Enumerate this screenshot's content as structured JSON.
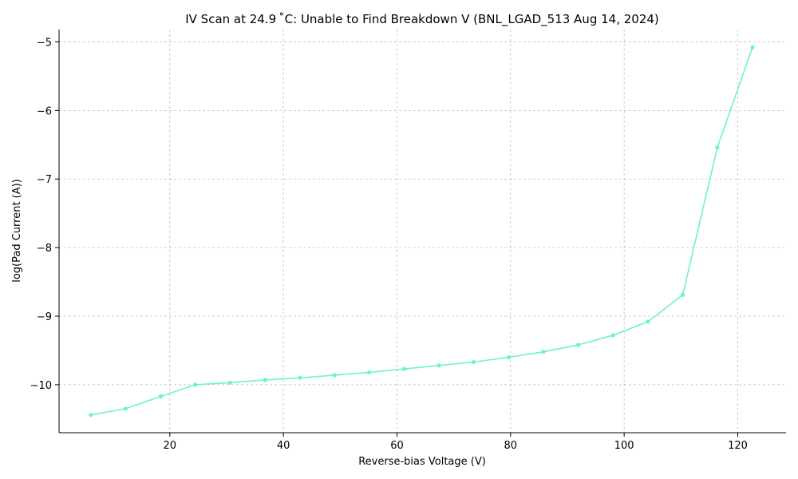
{
  "chart_data": {
    "type": "line",
    "title": "IV Scan at 24.9 ˚C: Unable to Find Breakdown V (BNL_LGAD_513 Aug 14, 2024)",
    "xlabel": "Reverse-bias Voltage (V)",
    "ylabel": "log(Pad Current (A))",
    "xlim": [
      0.5,
      128.5
    ],
    "ylim": [
      -10.7,
      -4.82
    ],
    "xticks": [
      20,
      40,
      60,
      80,
      100,
      120
    ],
    "yticks": [
      -10,
      -9,
      -8,
      -7,
      -6,
      -5
    ],
    "grid": true,
    "line_color": "#6ef5bc",
    "series": [
      {
        "x": [
          6.1,
          12.2,
          18.4,
          24.5,
          30.6,
          36.8,
          42.9,
          49.0,
          55.1,
          61.3,
          67.4,
          73.5,
          79.7,
          85.8,
          91.9,
          98.0,
          104.2,
          110.3,
          116.4,
          122.6
        ],
        "y": [
          -10.44,
          -10.35,
          -10.17,
          -10.0,
          -9.97,
          -9.93,
          -9.9,
          -9.86,
          -9.82,
          -9.77,
          -9.72,
          -9.67,
          -9.6,
          -9.52,
          -9.42,
          -9.28,
          -9.08,
          -8.69,
          -6.54,
          -5.08
        ]
      }
    ]
  }
}
